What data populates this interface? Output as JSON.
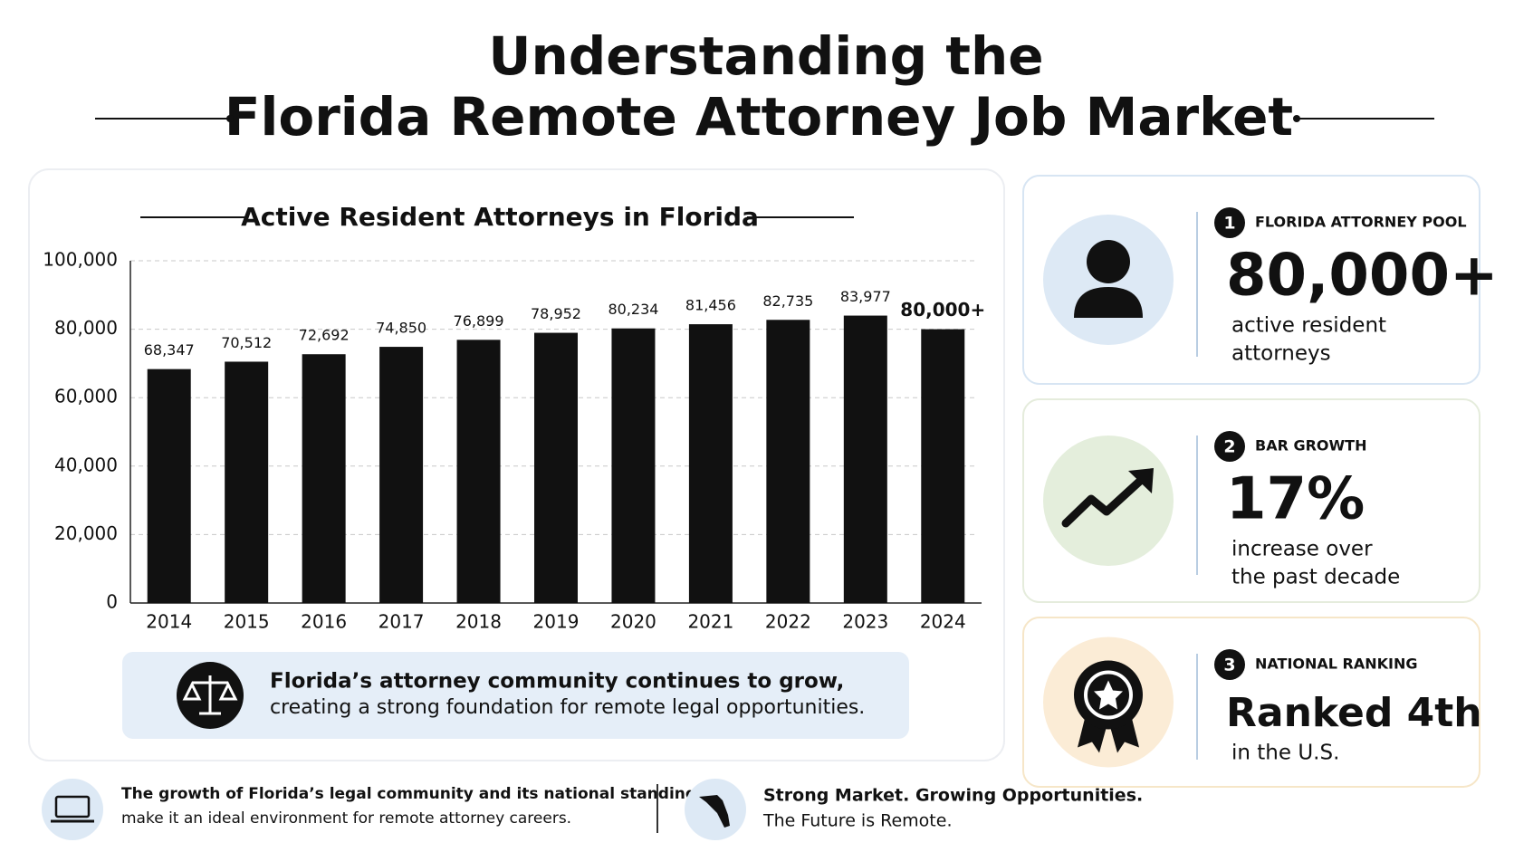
{
  "title_lines": [
    "Understanding the",
    "Florida Remote Attorney Job Market"
  ],
  "chart_data": {
    "type": "bar",
    "title": "Active Resident Attorneys in Florida",
    "categories": [
      "2014",
      "2015",
      "2016",
      "2017",
      "2018",
      "2019",
      "2020",
      "2021",
      "2022",
      "2023",
      "2024"
    ],
    "values": [
      68347,
      70512,
      72692,
      74850,
      76899,
      78952,
      80234,
      81456,
      82735,
      83977,
      80000
    ],
    "value_labels": [
      "68,347",
      "70,512",
      "72,692",
      "74,850",
      "76,899",
      "78,952",
      "80,234",
      "81,456",
      "82,735",
      "83,977",
      "80,000+"
    ],
    "color": "#111111",
    "ylim": [
      0,
      100000
    ],
    "yticks": [
      0,
      {
        "value": 20000,
        "label": "20,000"
      },
      {
        "value": 40000,
        "label": "40,000"
      },
      {
        "value": 60000,
        "label": "60,000"
      },
      {
        "value": 80000,
        "label": "80,000"
      },
      {
        "value": 100000,
        "label": "100,000"
      }
    ],
    "grid": true
  },
  "callout": {
    "bold": "Florida’s attorney community continues to grow,",
    "text": "creating a strong foundation for remote legal opportunities."
  },
  "cards": [
    {
      "number": "1",
      "heading": "FLORIDA ATTORNEY POOL",
      "stat": "80,000+",
      "lines": [
        "active resident",
        "attorneys"
      ]
    },
    {
      "number": "2",
      "heading": "BAR GROWTH",
      "stat": "17%",
      "lines": [
        "increase over",
        "the past decade"
      ]
    },
    {
      "number": "3",
      "heading": "NATIONAL RANKING",
      "stat": "Ranked 4th",
      "lines": [
        "in the U.S."
      ]
    }
  ],
  "footer": {
    "left": [
      "The growth of Florida’s legal community and its national standing",
      "make it an ideal environment for remote attorney careers."
    ],
    "right": [
      "Strong Market. Growing Opportunities.",
      "The Future is Remote."
    ]
  }
}
